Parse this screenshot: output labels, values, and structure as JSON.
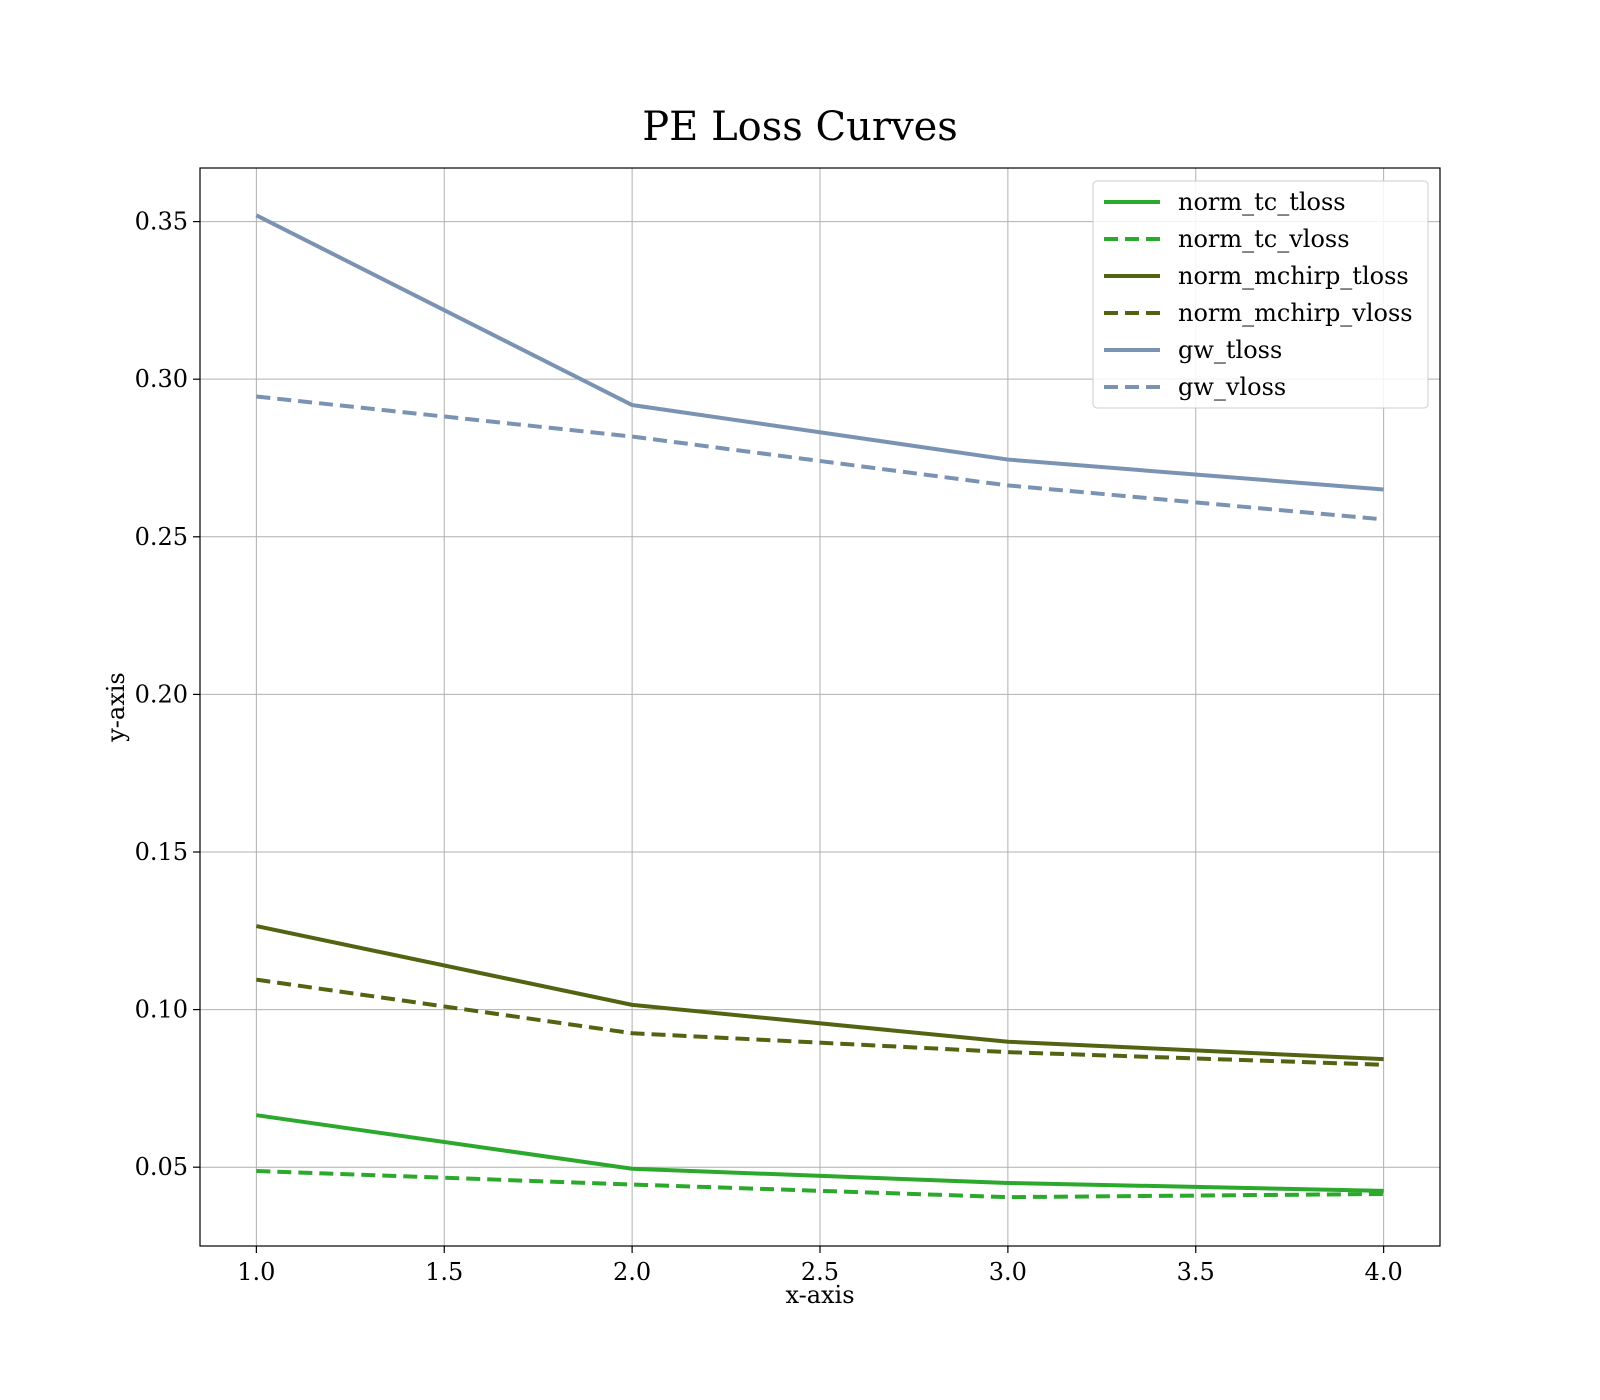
{
  "chart_data": {
    "type": "line",
    "title": "PE Loss Curves",
    "xlabel": "x-axis",
    "ylabel": "y-axis",
    "xlim": [
      0.85,
      4.15
    ],
    "ylim": [
      0.025,
      0.367
    ],
    "xticks": [
      1.0,
      1.5,
      2.0,
      2.5,
      3.0,
      3.5,
      4.0
    ],
    "xtick_labels": [
      "1.0",
      "1.5",
      "2.0",
      "2.5",
      "3.0",
      "3.5",
      "4.0"
    ],
    "yticks": [
      0.05,
      0.1,
      0.15,
      0.2,
      0.25,
      0.3,
      0.35
    ],
    "ytick_labels": [
      "0.05",
      "0.10",
      "0.15",
      "0.20",
      "0.25",
      "0.30",
      "0.35"
    ],
    "grid": true,
    "legend_position": "top-right",
    "x": [
      1,
      2,
      3,
      4
    ],
    "series": [
      {
        "name": "norm_tc_tloss",
        "values": [
          0.0665,
          0.0495,
          0.045,
          0.0425
        ],
        "color": "#2ca82c",
        "dash": "solid"
      },
      {
        "name": "norm_tc_vloss",
        "values": [
          0.0488,
          0.0445,
          0.0405,
          0.0415
        ],
        "color": "#2ca82c",
        "dash": "dashed"
      },
      {
        "name": "norm_mchirp_tloss",
        "values": [
          0.1265,
          0.1015,
          0.0898,
          0.0843
        ],
        "color": "#526412",
        "dash": "solid"
      },
      {
        "name": "norm_mchirp_vloss",
        "values": [
          0.1095,
          0.0925,
          0.0865,
          0.0825
        ],
        "color": "#526412",
        "dash": "dashed"
      },
      {
        "name": "gw_tloss",
        "values": [
          0.352,
          0.2918,
          0.2745,
          0.265
        ],
        "color": "#7a93b2",
        "dash": "solid"
      },
      {
        "name": "gw_vloss",
        "values": [
          0.2945,
          0.2818,
          0.2663,
          0.2555
        ],
        "color": "#7a93b2",
        "dash": "dashed"
      }
    ]
  }
}
